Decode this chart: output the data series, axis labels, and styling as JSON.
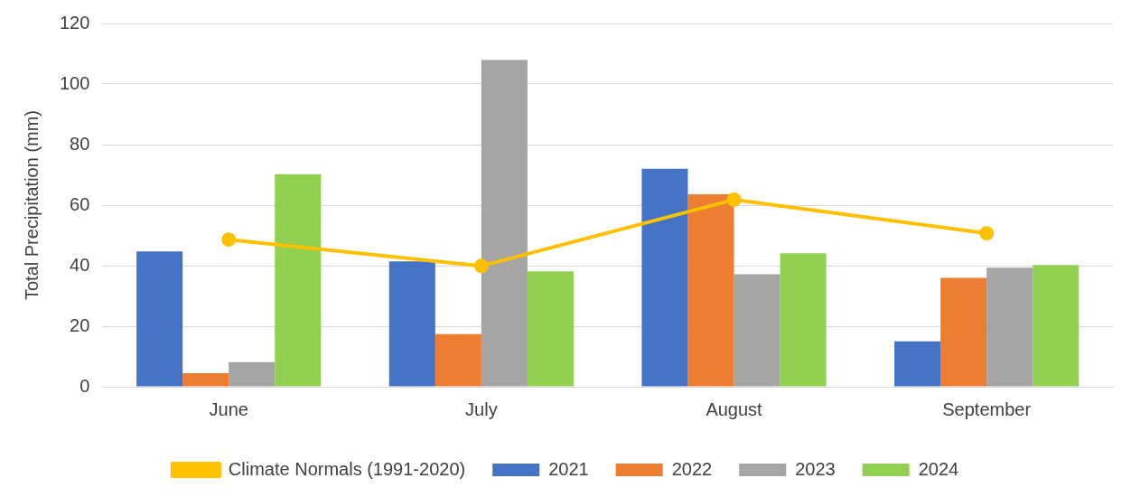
{
  "chart_data": {
    "type": "bar",
    "ylabel": "Total Precipitation (mm)",
    "categories": [
      "June",
      "July",
      "August",
      "September"
    ],
    "series": [
      {
        "name": "2021",
        "color": "#4472c4",
        "values": [
          44.7,
          41.4,
          72,
          15
        ]
      },
      {
        "name": "2022",
        "color": "#ed7d31",
        "values": [
          4.5,
          17.4,
          63.6,
          36
        ]
      },
      {
        "name": "2023",
        "color": "#a5a5a5",
        "values": [
          8.1,
          108,
          37.2,
          39.3
        ]
      },
      {
        "name": "2024",
        "color": "#92d050",
        "values": [
          70.2,
          38.1,
          44.1,
          40.2
        ]
      },
      {
        "name": "Climate Normals (1991-2020)",
        "type": "line",
        "color": "#ffc000",
        "values": [
          48.6,
          39.9,
          61.8,
          50.7
        ]
      }
    ],
    "ylim": [
      0,
      120
    ],
    "yticks": [
      0,
      20,
      40,
      60,
      80,
      100,
      120
    ],
    "grid": "y",
    "legend": "bottom",
    "marker": "circle"
  }
}
